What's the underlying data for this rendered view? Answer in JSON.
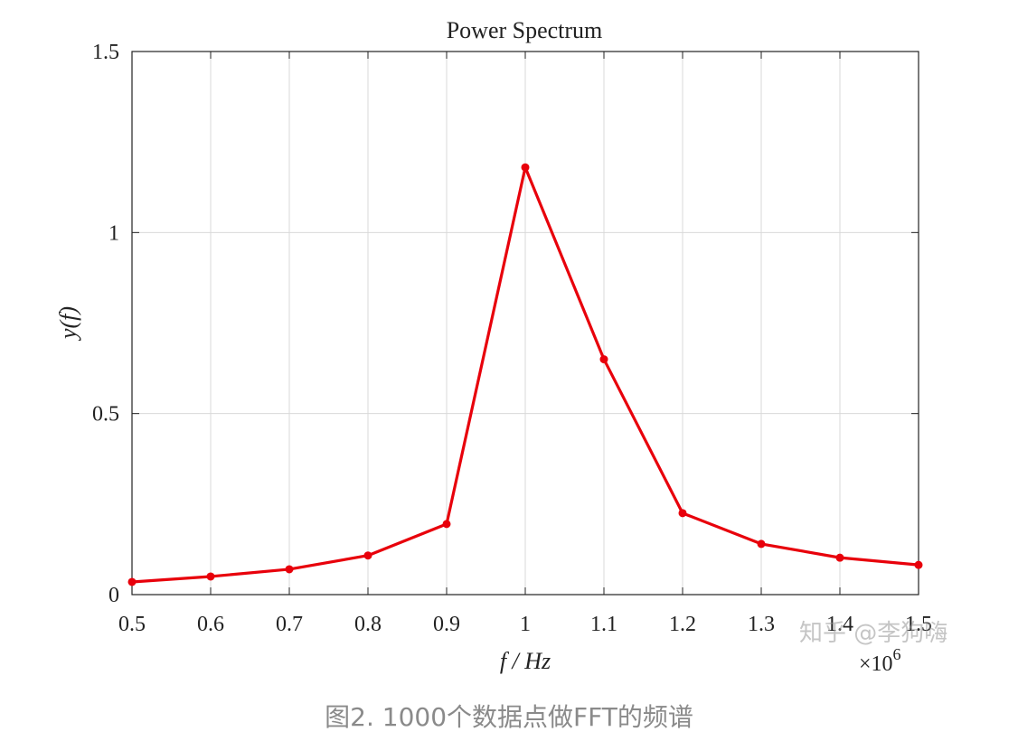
{
  "chart_data": {
    "type": "line",
    "title": "Power Spectrum",
    "xlabel": "f / Hz",
    "ylabel": "y(f)",
    "x_exponent_label": "×10",
    "x_exponent_power": "6",
    "x": [
      0.5,
      0.6,
      0.7,
      0.8,
      0.9,
      1.0,
      1.1,
      1.2,
      1.3,
      1.4,
      1.5
    ],
    "x_tick_labels": [
      "0.5",
      "0.6",
      "0.7",
      "0.8",
      "0.9",
      "1",
      "1.1",
      "1.2",
      "1.3",
      "1.4",
      "1.5"
    ],
    "y_ticks": [
      0,
      0.5,
      1,
      1.5
    ],
    "y_tick_labels": [
      "0",
      "0.5",
      "1",
      "1.5"
    ],
    "xlim": [
      0.5,
      1.5
    ],
    "ylim": [
      0,
      1.5
    ],
    "grid": true,
    "series": [
      {
        "color": "#e8000b",
        "marker": "dot",
        "values": [
          0.035,
          0.05,
          0.07,
          0.108,
          0.195,
          1.18,
          0.65,
          0.225,
          0.14,
          0.102,
          0.082
        ]
      }
    ]
  },
  "caption": "图2. 1000个数据点做FFT的频谱",
  "watermark": "知乎 @李狗嗨"
}
